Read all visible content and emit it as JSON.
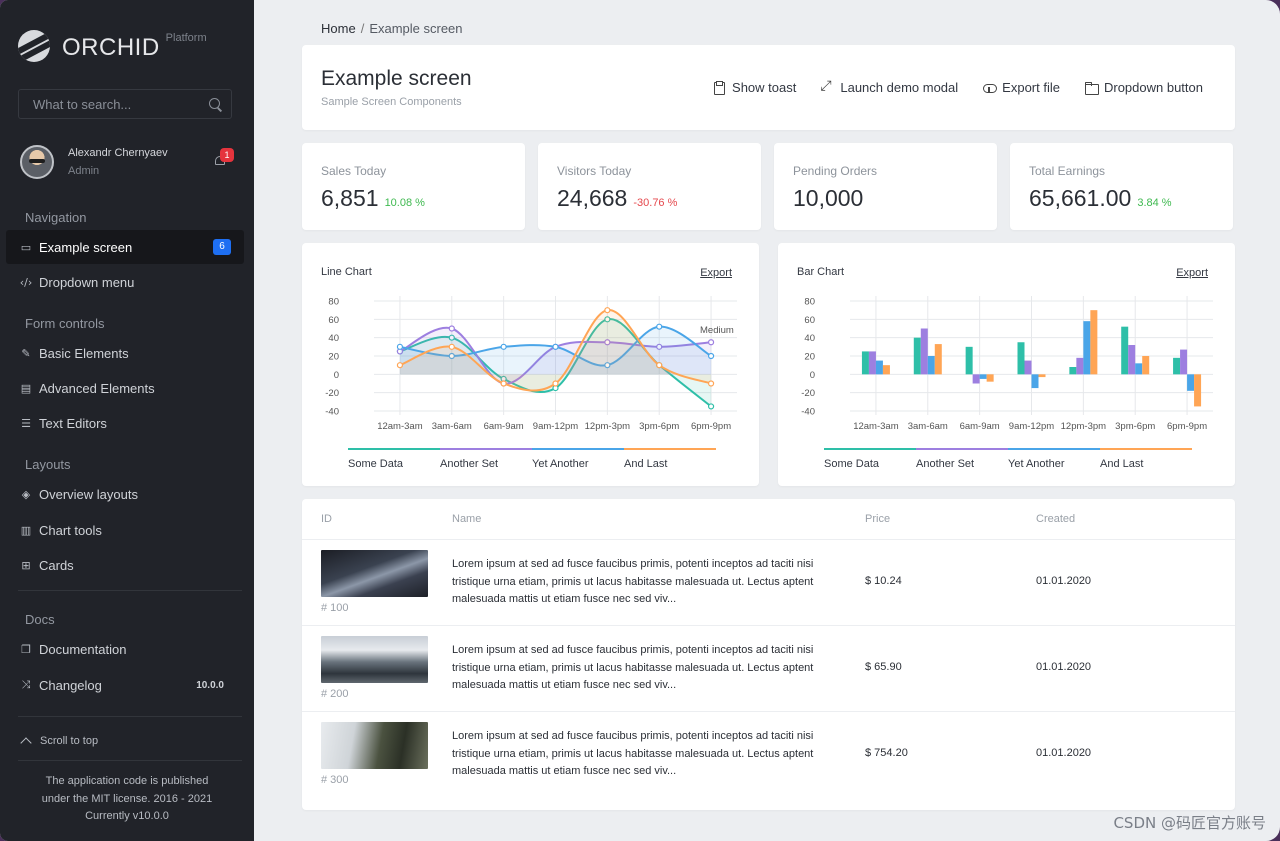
{
  "sidebar": {
    "logo": {
      "name": "ORCHID",
      "sup": "Platform"
    },
    "search": {
      "placeholder": "What to search..."
    },
    "user": {
      "name": "Alexandr Chernyaev",
      "role": "Admin",
      "notifications": "1"
    },
    "sections": {
      "navigation": "Navigation",
      "form_controls": "Form controls",
      "layouts": "Layouts",
      "docs": "Docs"
    },
    "items": {
      "example_screen": {
        "label": "Example screen",
        "badge": "6"
      },
      "dropdown_menu": {
        "label": "Dropdown menu"
      },
      "basic_elements": {
        "label": "Basic Elements"
      },
      "advanced_elements": {
        "label": "Advanced Elements"
      },
      "text_editors": {
        "label": "Text Editors"
      },
      "overview_layouts": {
        "label": "Overview layouts"
      },
      "chart_tools": {
        "label": "Chart tools"
      },
      "cards": {
        "label": "Cards"
      },
      "documentation": {
        "label": "Documentation"
      },
      "changelog": {
        "label": "Changelog",
        "version": "10.0.0"
      }
    },
    "scroll_top": "Scroll to top",
    "license": [
      "The application code is published",
      "under the MIT license. 2016 - 2021",
      "Currently v10.0.0"
    ]
  },
  "breadcrumb": {
    "home": "Home",
    "sep": "/",
    "current": "Example screen"
  },
  "header": {
    "title": "Example screen",
    "subtitle": "Sample Screen Components",
    "actions": {
      "toast": "Show toast",
      "modal": "Launch demo modal",
      "export": "Export file",
      "dropdown": "Dropdown button"
    }
  },
  "stats": [
    {
      "label": "Sales Today",
      "value": "6,851",
      "delta": "10.08 %",
      "trend": "up"
    },
    {
      "label": "Visitors Today",
      "value": "24,668",
      "delta": "-30.76 %",
      "trend": "down"
    },
    {
      "label": "Pending Orders",
      "value": "10,000",
      "delta": "",
      "trend": ""
    },
    {
      "label": "Total Earnings",
      "value": "65,661.00",
      "delta": "3.84 %",
      "trend": "up"
    }
  ],
  "chart_data": [
    {
      "type": "line",
      "title": "Line Chart",
      "export": "Export",
      "categories": [
        "12am-3am",
        "3am-6am",
        "6am-9am",
        "9am-12pm",
        "12pm-3pm",
        "3pm-6pm",
        "6pm-9pm"
      ],
      "yticks": [
        80,
        60,
        40,
        20,
        0,
        -20,
        -40
      ],
      "ylim": [
        -40,
        80
      ],
      "annotation": "Medium",
      "series": [
        {
          "name": "Some Data",
          "color": "#2ebfa8",
          "values": [
            25,
            40,
            -5,
            -15,
            60,
            10,
            -35
          ]
        },
        {
          "name": "Another Set",
          "color": "#9d7fe0",
          "values": [
            25,
            50,
            -10,
            30,
            35,
            30,
            35
          ]
        },
        {
          "name": "Yet Another",
          "color": "#4aa5e8",
          "values": [
            30,
            20,
            30,
            30,
            10,
            52,
            20
          ]
        },
        {
          "name": "And Last",
          "color": "#ffa555",
          "values": [
            10,
            30,
            -10,
            -10,
            70,
            10,
            -10
          ]
        }
      ]
    },
    {
      "type": "bar",
      "title": "Bar Chart",
      "export": "Export",
      "categories": [
        "12am-3am",
        "3am-6am",
        "6am-9am",
        "9am-12pm",
        "12pm-3pm",
        "3pm-6pm",
        "6pm-9pm"
      ],
      "yticks": [
        80,
        60,
        40,
        20,
        0,
        -20,
        -40
      ],
      "ylim": [
        -40,
        80
      ],
      "series": [
        {
          "name": "Some Data",
          "color": "#2ebfa8",
          "values": [
            25,
            40,
            30,
            35,
            8,
            52,
            18
          ]
        },
        {
          "name": "Another Set",
          "color": "#9d7fe0",
          "values": [
            25,
            50,
            -10,
            15,
            18,
            32,
            27
          ]
        },
        {
          "name": "Yet Another",
          "color": "#4aa5e8",
          "values": [
            15,
            20,
            -5,
            -15,
            58,
            12,
            -18
          ]
        },
        {
          "name": "And Last",
          "color": "#ffa555",
          "values": [
            10,
            33,
            -8,
            -3,
            70,
            20,
            -35
          ]
        }
      ]
    }
  ],
  "table": {
    "headers": {
      "id": "ID",
      "name": "Name",
      "price": "Price",
      "created": "Created"
    },
    "rows": [
      {
        "id": "# 100",
        "desc": "Lorem ipsum at sed ad fusce faucibus primis, potenti inceptos ad taciti nisi tristique urna etiam, primis ut lacus habitasse malesuada ut. Lectus aptent malesuada mattis ut etiam fusce nec sed viv...",
        "price": "$ 10.24",
        "created": "01.01.2020"
      },
      {
        "id": "# 200",
        "desc": "Lorem ipsum at sed ad fusce faucibus primis, potenti inceptos ad taciti nisi tristique urna etiam, primis ut lacus habitasse malesuada ut. Lectus aptent malesuada mattis ut etiam fusce nec sed viv...",
        "price": "$ 65.90",
        "created": "01.01.2020"
      },
      {
        "id": "# 300",
        "desc": "Lorem ipsum at sed ad fusce faucibus primis, potenti inceptos ad taciti nisi tristique urna etiam, primis ut lacus habitasse malesuada ut. Lectus aptent malesuada mattis ut etiam fusce nec sed viv...",
        "price": "$ 754.20",
        "created": "01.01.2020"
      }
    ]
  },
  "watermark": "CSDN @码匠官方账号"
}
